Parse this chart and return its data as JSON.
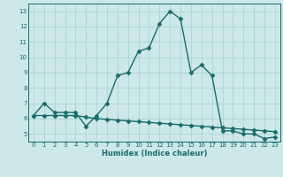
{
  "xlabel": "Humidex (Indice chaleur)",
  "ylabel": "",
  "bg_color": "#cce8e8",
  "grid_color": "#aed4d4",
  "line_color": "#1a6b6b",
  "xlim": [
    -0.5,
    23.5
  ],
  "ylim": [
    4.5,
    13.5
  ],
  "xticks": [
    0,
    1,
    2,
    3,
    4,
    5,
    6,
    7,
    8,
    9,
    10,
    11,
    12,
    13,
    14,
    15,
    16,
    17,
    18,
    19,
    20,
    21,
    22,
    23
  ],
  "yticks": [
    5,
    6,
    7,
    8,
    9,
    10,
    11,
    12,
    13
  ],
  "series1_x": [
    0,
    1,
    2,
    3,
    4,
    5,
    6,
    7,
    8,
    9,
    10,
    11,
    12,
    13,
    14,
    15,
    16,
    17,
    18,
    19,
    20,
    21,
    22,
    23
  ],
  "series1_y": [
    6.2,
    7.0,
    6.4,
    6.4,
    6.4,
    5.5,
    6.2,
    7.0,
    8.8,
    9.0,
    10.4,
    10.6,
    12.2,
    13.0,
    12.5,
    9.0,
    9.5,
    8.8,
    5.2,
    5.2,
    5.0,
    5.0,
    4.7,
    4.8
  ],
  "series2_x": [
    0,
    1,
    2,
    3,
    4,
    5,
    6,
    7,
    8,
    9,
    10,
    11,
    12,
    13,
    14,
    15,
    16,
    17,
    18,
    19,
    20,
    21,
    22,
    23
  ],
  "series2_y": [
    6.2,
    6.2,
    6.2,
    6.2,
    6.2,
    6.1,
    6.0,
    5.95,
    5.9,
    5.85,
    5.8,
    5.75,
    5.7,
    5.65,
    5.6,
    5.55,
    5.5,
    5.45,
    5.4,
    5.35,
    5.3,
    5.25,
    5.2,
    5.15
  ],
  "marker": "D",
  "markersize": 2.5,
  "linewidth": 1.0
}
